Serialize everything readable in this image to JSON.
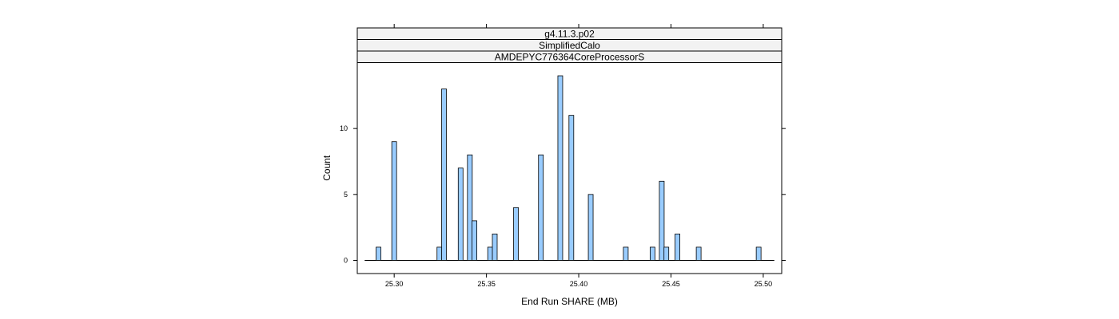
{
  "chart_data": {
    "type": "bar",
    "strips": [
      "g4.11.3.p02",
      "SimplifiedCalo",
      "AMDEPYC776364CoreProcessorS"
    ],
    "xlabel": "End Run SHARE (MB)",
    "ylabel": "Count",
    "xlim": [
      25.28,
      25.51
    ],
    "ylim": [
      -1,
      15
    ],
    "baseline_range": [
      25.284,
      25.506
    ],
    "x_ticks": [
      25.3,
      25.35,
      25.4,
      25.45,
      25.5
    ],
    "x_tick_labels": [
      "25.30",
      "25.35",
      "25.40",
      "25.45",
      "25.50"
    ],
    "y_ticks": [
      0,
      5,
      10
    ],
    "y_tick_labels": [
      "0",
      "5",
      "10"
    ],
    "bin_width": 0.0026,
    "bars": [
      {
        "x": 25.2915,
        "count": 1
      },
      {
        "x": 25.3,
        "count": 9
      },
      {
        "x": 25.3245,
        "count": 1
      },
      {
        "x": 25.327,
        "count": 13
      },
      {
        "x": 25.336,
        "count": 7
      },
      {
        "x": 25.341,
        "count": 8
      },
      {
        "x": 25.3435,
        "count": 3
      },
      {
        "x": 25.352,
        "count": 1
      },
      {
        "x": 25.3545,
        "count": 2
      },
      {
        "x": 25.366,
        "count": 4
      },
      {
        "x": 25.3795,
        "count": 8
      },
      {
        "x": 25.39,
        "count": 14
      },
      {
        "x": 25.396,
        "count": 11
      },
      {
        "x": 25.4065,
        "count": 5
      },
      {
        "x": 25.4255,
        "count": 1
      },
      {
        "x": 25.44,
        "count": 1
      },
      {
        "x": 25.445,
        "count": 6
      },
      {
        "x": 25.4475,
        "count": 1
      },
      {
        "x": 25.4535,
        "count": 2
      },
      {
        "x": 25.465,
        "count": 1
      },
      {
        "x": 25.4975,
        "count": 1
      }
    ],
    "bar_color": "#99ccff",
    "bar_edge_color": "#000000",
    "strip_color": "#f2f2f2",
    "grid": false
  }
}
